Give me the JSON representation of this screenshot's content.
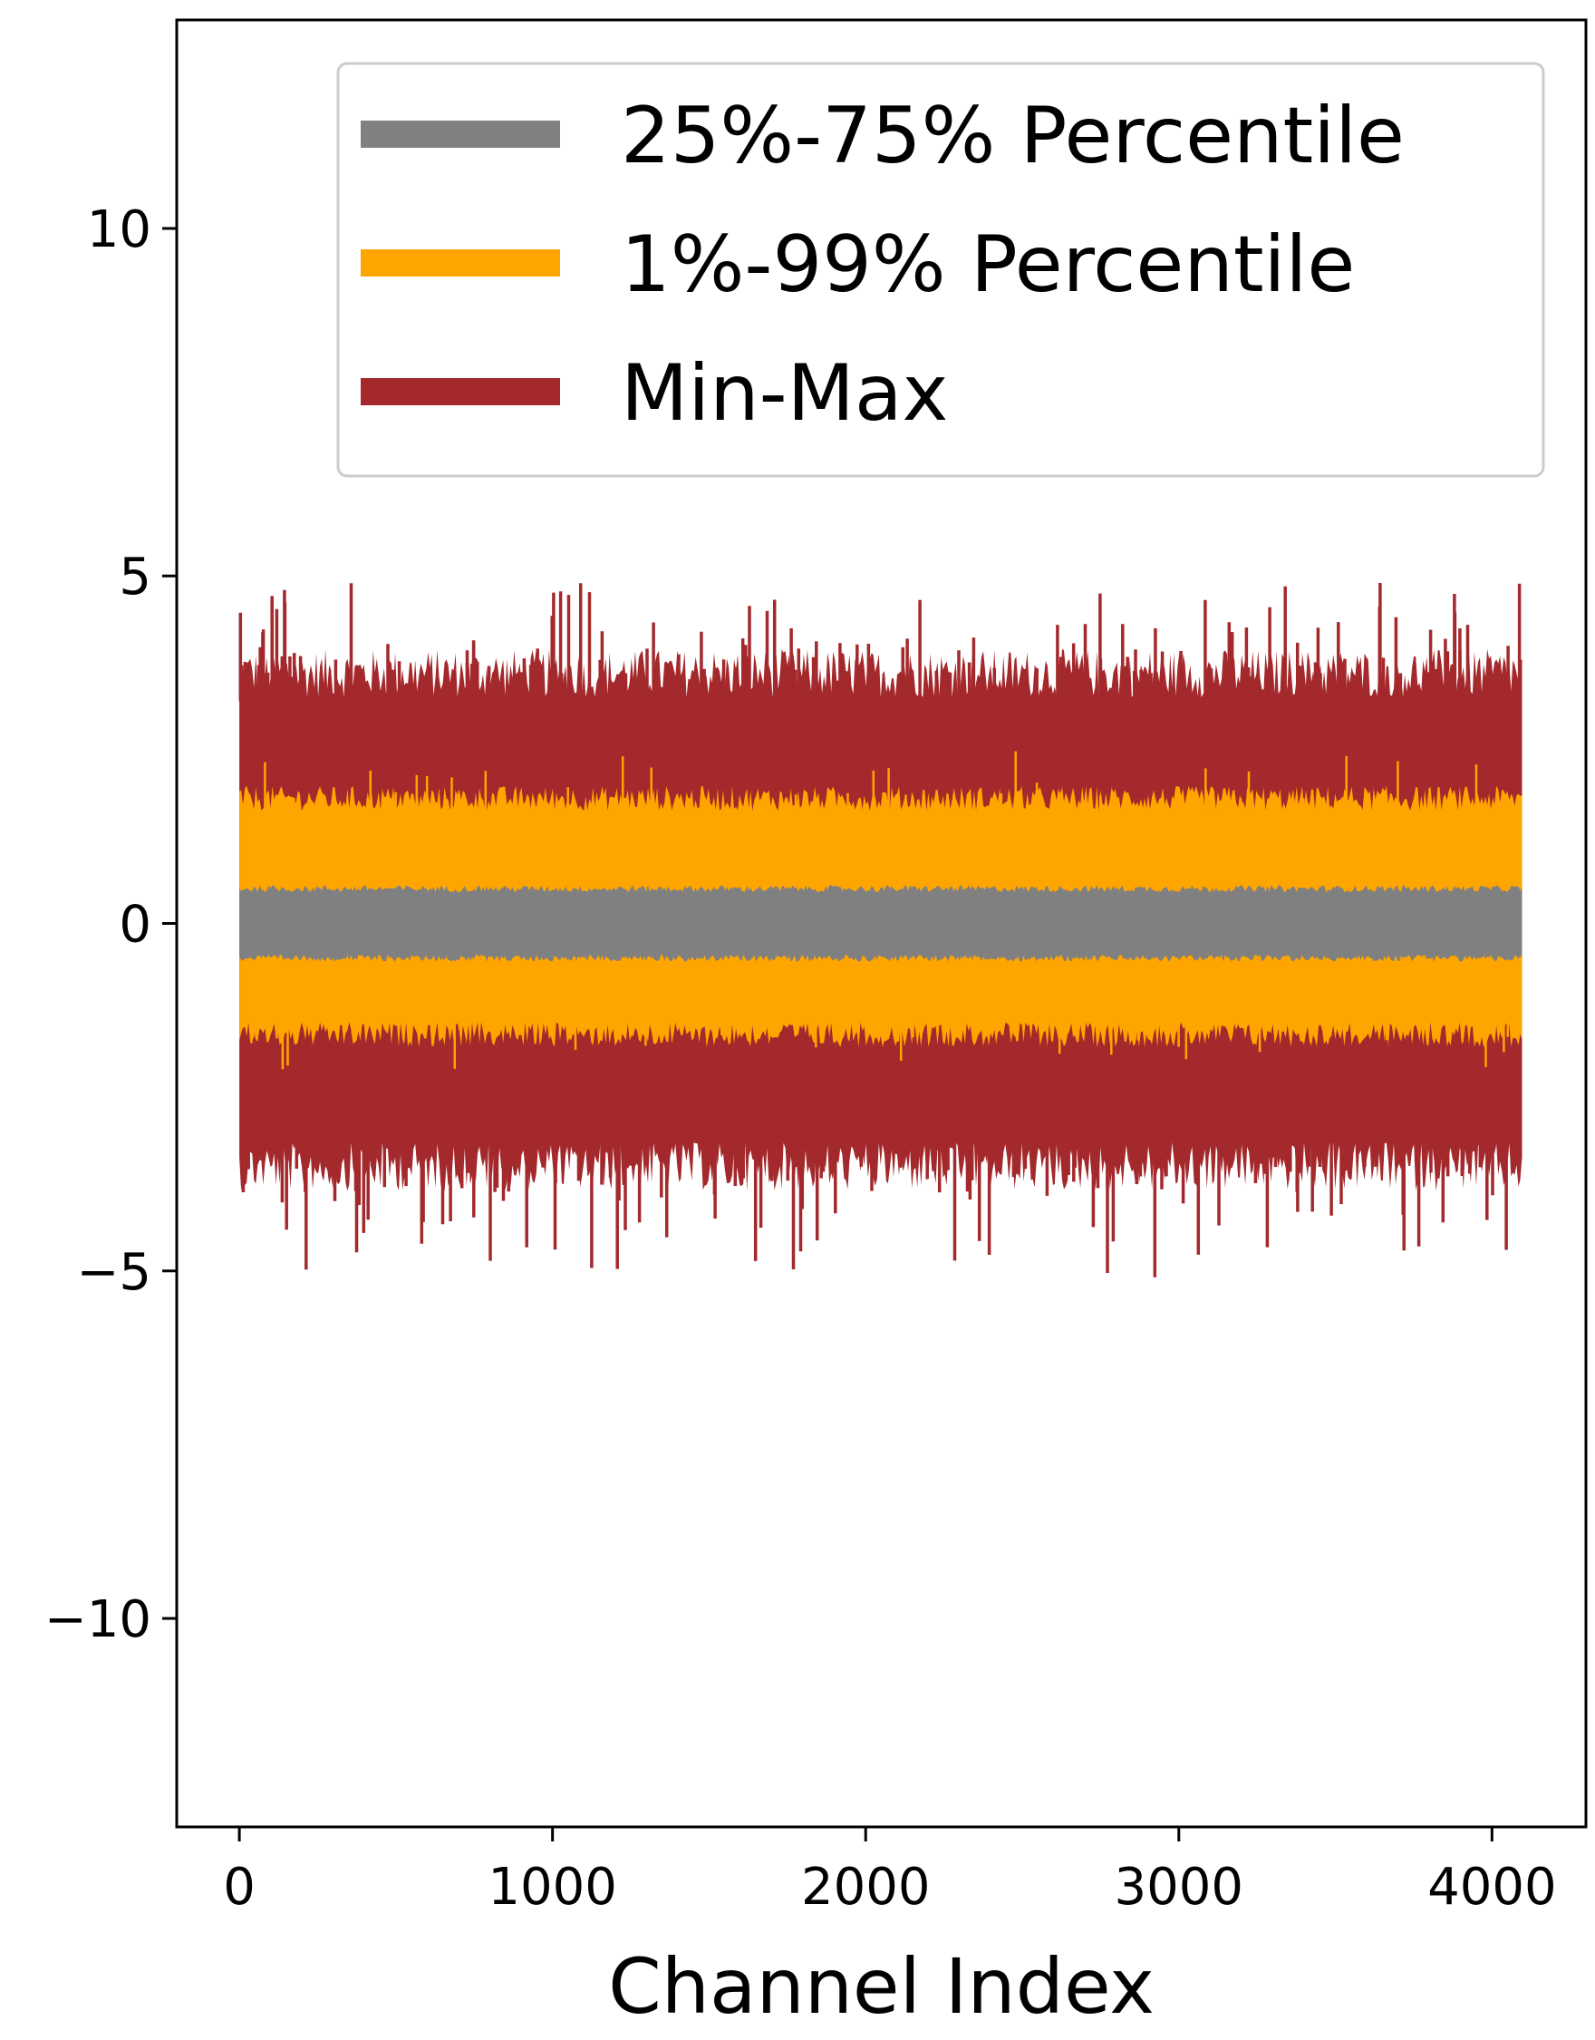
{
  "chart_data": {
    "type": "area",
    "title": "",
    "xlabel": "Channel Index",
    "ylabel": "",
    "xlim": [
      -200,
      4300
    ],
    "ylim": [
      -13,
      13
    ],
    "x_ticks": [
      0,
      1000,
      2000,
      3000,
      4000
    ],
    "x_tick_labels": [
      "0",
      "1000",
      "2000",
      "3000",
      "4000"
    ],
    "y_ticks": [
      -10,
      -5,
      0,
      5,
      10
    ],
    "y_tick_labels": [
      "−10",
      "−5",
      "0",
      "5",
      "10"
    ],
    "x_range": [
      0,
      4096
    ],
    "grid": false,
    "legend_position": "top-right",
    "series": [
      {
        "name": "Min-Max",
        "color": "#a3292c",
        "upper_typical": 3.6,
        "lower_typical": -3.5,
        "upper_max": 4.9,
        "lower_min": -5.1,
        "inner_upper": 2.0,
        "inner_lower": -1.8
      },
      {
        "name": "1%-99% Percentile",
        "color": "#ffa500",
        "upper_typical": 1.8,
        "lower_typical": -1.6,
        "upper_max": 2.5,
        "lower_min": -2.1
      },
      {
        "name": "25%-75% Percentile",
        "color": "#808080",
        "upper_typical": 0.5,
        "lower_typical": -0.5,
        "upper_max": 0.6,
        "lower_min": -0.6
      }
    ],
    "legend": [
      {
        "label": "25%-75% Percentile",
        "color": "#808080"
      },
      {
        "label": "1%-99% Percentile",
        "color": "#ffa500"
      },
      {
        "label": "Min-Max",
        "color": "#a3292c"
      }
    ]
  }
}
